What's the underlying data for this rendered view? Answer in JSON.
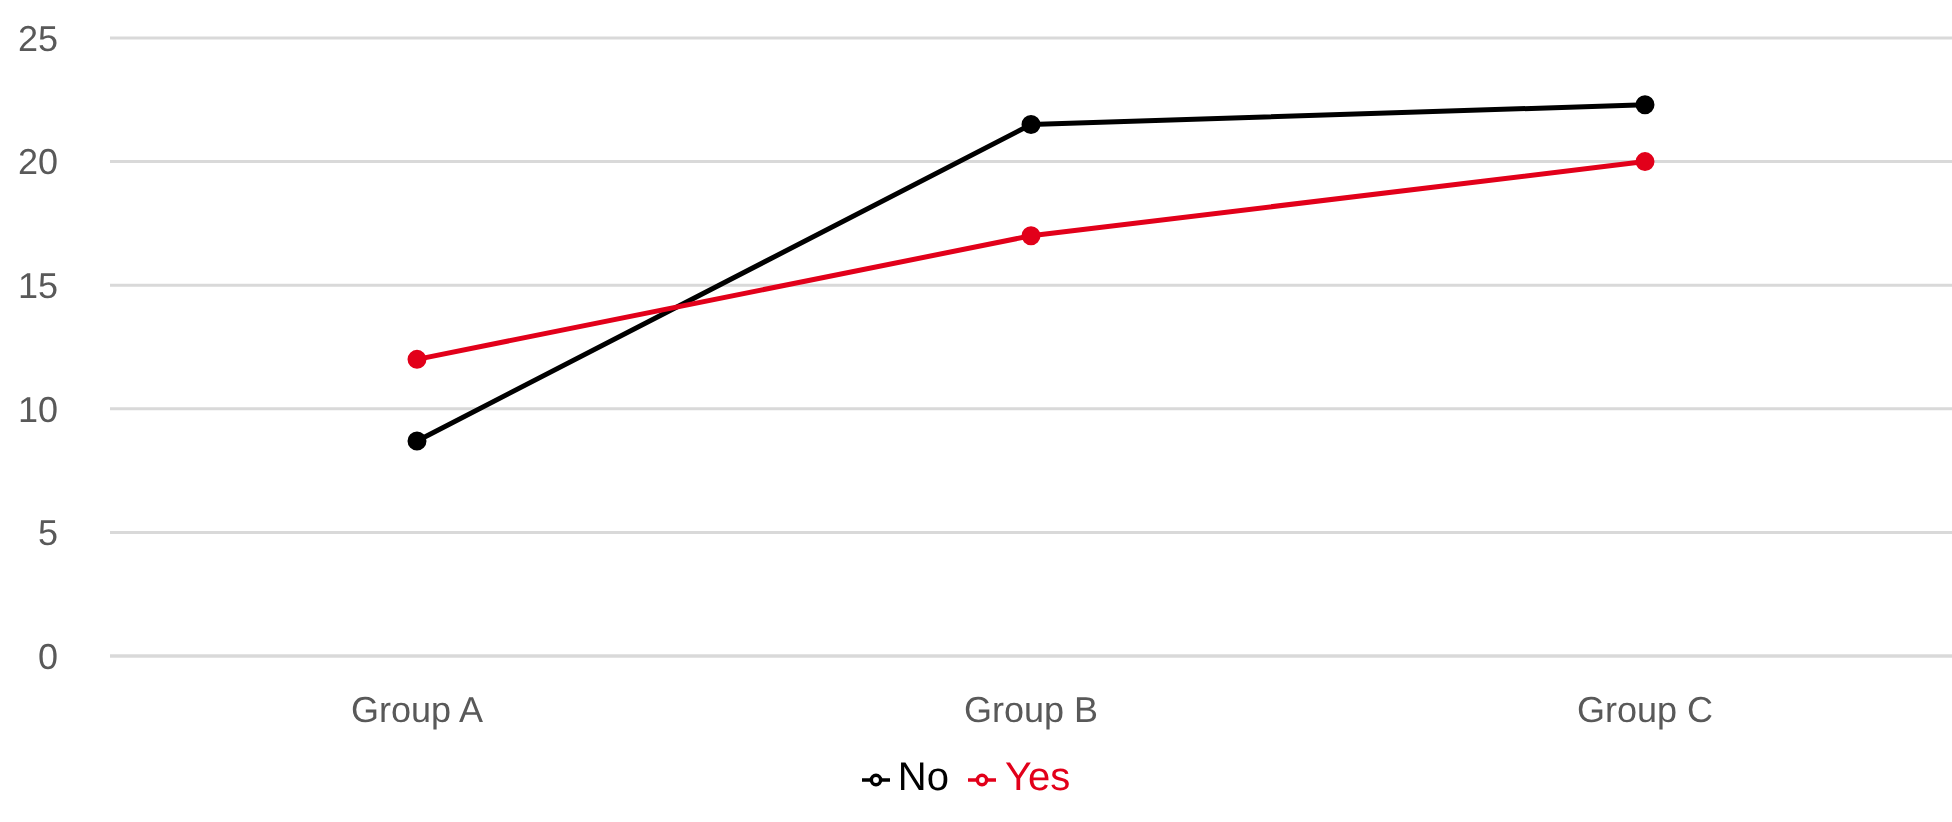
{
  "chart_data": {
    "type": "line",
    "categories": [
      "Group A",
      "Group B",
      "Group C"
    ],
    "series": [
      {
        "name": "No",
        "color": "#000000",
        "values": [
          8.7,
          21.5,
          22.3
        ]
      },
      {
        "name": "Yes",
        "color": "#e2001a",
        "values": [
          12,
          17,
          20
        ]
      }
    ],
    "ylim": [
      0,
      25
    ],
    "yticks": [
      0,
      5,
      10,
      15,
      20,
      25
    ],
    "grid": "y",
    "legend": "bottom",
    "marker": "circle",
    "line_style": "solid"
  }
}
